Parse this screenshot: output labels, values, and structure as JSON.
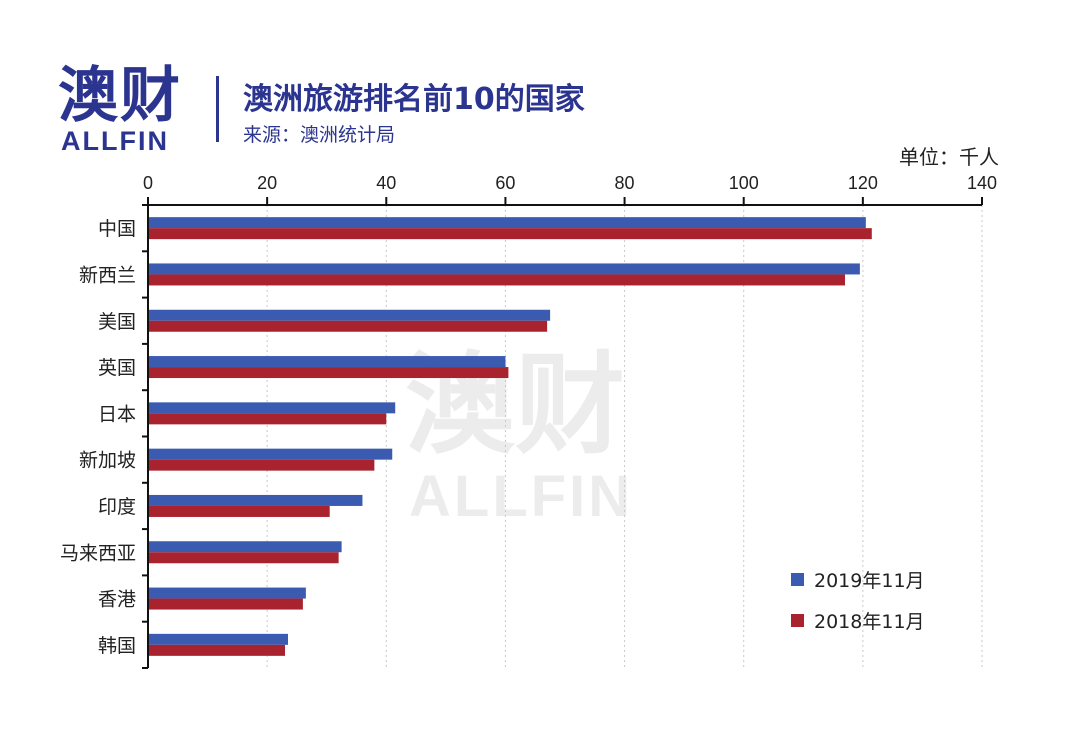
{
  "logo": {
    "cn": "澳财",
    "en": "ALLFIN"
  },
  "header": {
    "title": "澳洲旅游排名前10的国家",
    "source": "来源：澳洲统计局"
  },
  "watermark": {
    "cn": "澳财",
    "en": "ALLFIN"
  },
  "colors": {
    "brand": "#2b3590",
    "series_2019": "#3b5bb0",
    "series_2018": "#a8232e"
  },
  "chart_data": {
    "type": "bar",
    "orientation": "horizontal",
    "unit_label": "单位：千人",
    "categories": [
      "中国",
      "新西兰",
      "美国",
      "英国",
      "日本",
      "新加坡",
      "印度",
      "马来西亚",
      "香港",
      "韩国"
    ],
    "series": [
      {
        "name": "2019年11月",
        "values": [
          120.5,
          119.5,
          67.5,
          60,
          41.5,
          41,
          36,
          32.5,
          26.5,
          23.5
        ]
      },
      {
        "name": "2018年11月",
        "values": [
          121.5,
          117,
          67,
          60.5,
          40,
          38,
          30.5,
          32,
          26,
          23
        ]
      }
    ],
    "xlim": [
      0,
      140
    ],
    "xticks": [
      0,
      20,
      40,
      60,
      80,
      100,
      120,
      140
    ],
    "grid": true,
    "legend_position": "bottom-right"
  }
}
